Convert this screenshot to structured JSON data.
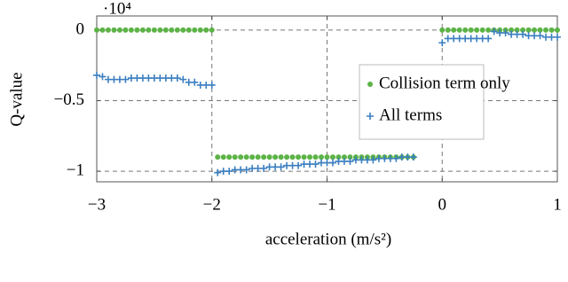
{
  "chart_data": {
    "type": "scatter",
    "y_scale_label": "·10⁴",
    "xlabel": "acceleration (m/s²)",
    "ylabel": "Q-value",
    "x": [
      -3,
      -2.95,
      -2.9,
      -2.85,
      -2.8,
      -2.75,
      -2.7,
      -2.65,
      -2.6,
      -2.55,
      -2.5,
      -2.45,
      -2.4,
      -2.35,
      -2.3,
      -2.25,
      -2.2,
      -2.15,
      -2.1,
      -2.05,
      -2,
      -1.95,
      -1.9,
      -1.85,
      -1.8,
      -1.75,
      -1.7,
      -1.65,
      -1.6,
      -1.55,
      -1.5,
      -1.45,
      -1.4,
      -1.35,
      -1.3,
      -1.25,
      -1.2,
      -1.15,
      -1.1,
      -1.05,
      -1,
      -0.95,
      -0.9,
      -0.85,
      -0.8,
      -0.75,
      -0.7,
      -0.65,
      -0.6,
      -0.55,
      -0.5,
      -0.45,
      -0.4,
      -0.35,
      -0.3,
      -0.25,
      0,
      0.05,
      0.1,
      0.15,
      0.2,
      0.25,
      0.3,
      0.35,
      0.4,
      0.45,
      0.5,
      0.55,
      0.6,
      0.65,
      0.7,
      0.75,
      0.8,
      0.85,
      0.9,
      0.95,
      1
    ],
    "series": [
      {
        "name": "Collision term only",
        "color": "#5cb346",
        "marker": "dot",
        "values": [
          0,
          0,
          0,
          0,
          0,
          0,
          0,
          0,
          0,
          0,
          0,
          0,
          0,
          0,
          0,
          0,
          0,
          0,
          0,
          0,
          0,
          -0.9,
          -0.9,
          -0.9,
          -0.9,
          -0.9,
          -0.9,
          -0.9,
          -0.9,
          -0.9,
          -0.9,
          -0.9,
          -0.9,
          -0.9,
          -0.9,
          -0.9,
          -0.9,
          -0.9,
          -0.9,
          -0.9,
          -0.9,
          -0.9,
          -0.9,
          -0.9,
          -0.9,
          -0.9,
          -0.9,
          -0.9,
          -0.9,
          -0.9,
          -0.9,
          -0.9,
          -0.9,
          -0.9,
          -0.9,
          -0.9,
          0,
          0,
          0,
          0,
          0,
          0,
          0,
          0,
          0,
          0,
          0,
          0,
          0,
          0,
          0,
          0,
          0,
          0,
          0,
          0,
          0
        ]
      },
      {
        "name": "All terms",
        "color": "#3b7fc0",
        "marker": "plus",
        "values": [
          -0.32,
          -0.33,
          -0.35,
          -0.35,
          -0.35,
          -0.35,
          -0.34,
          -0.34,
          -0.34,
          -0.34,
          -0.34,
          -0.34,
          -0.34,
          -0.34,
          -0.34,
          -0.35,
          -0.37,
          -0.37,
          -0.39,
          -0.39,
          -0.39,
          -1.01,
          -1,
          -1,
          -0.99,
          -0.99,
          -0.99,
          -0.98,
          -0.98,
          -0.98,
          -0.97,
          -0.97,
          -0.97,
          -0.96,
          -0.96,
          -0.96,
          -0.95,
          -0.95,
          -0.95,
          -0.94,
          -0.94,
          -0.94,
          -0.93,
          -0.93,
          -0.93,
          -0.92,
          -0.92,
          -0.92,
          -0.92,
          -0.91,
          -0.91,
          -0.91,
          -0.91,
          -0.9,
          -0.9,
          -0.9,
          -0.09,
          -0.06,
          -0.06,
          -0.06,
          -0.06,
          -0.06,
          -0.06,
          -0.06,
          -0.06,
          -0.01,
          -0.02,
          -0.02,
          -0.03,
          -0.03,
          -0.03,
          -0.04,
          -0.04,
          -0.04,
          -0.05,
          -0.05,
          -0.05
        ]
      }
    ],
    "xlim": [
      -3,
      1
    ],
    "xticks": [
      {
        "value": -3,
        "label": "−3"
      },
      {
        "value": -2,
        "label": "−2"
      },
      {
        "value": -1,
        "label": "−1"
      },
      0,
      1
    ],
    "ylim": [
      -1.075,
      0.1
    ],
    "yticks": [
      {
        "value": -1,
        "label": "−1"
      },
      {
        "value": -0.5,
        "label": "−0.5"
      },
      0
    ],
    "grid": true,
    "legend": "right"
  }
}
